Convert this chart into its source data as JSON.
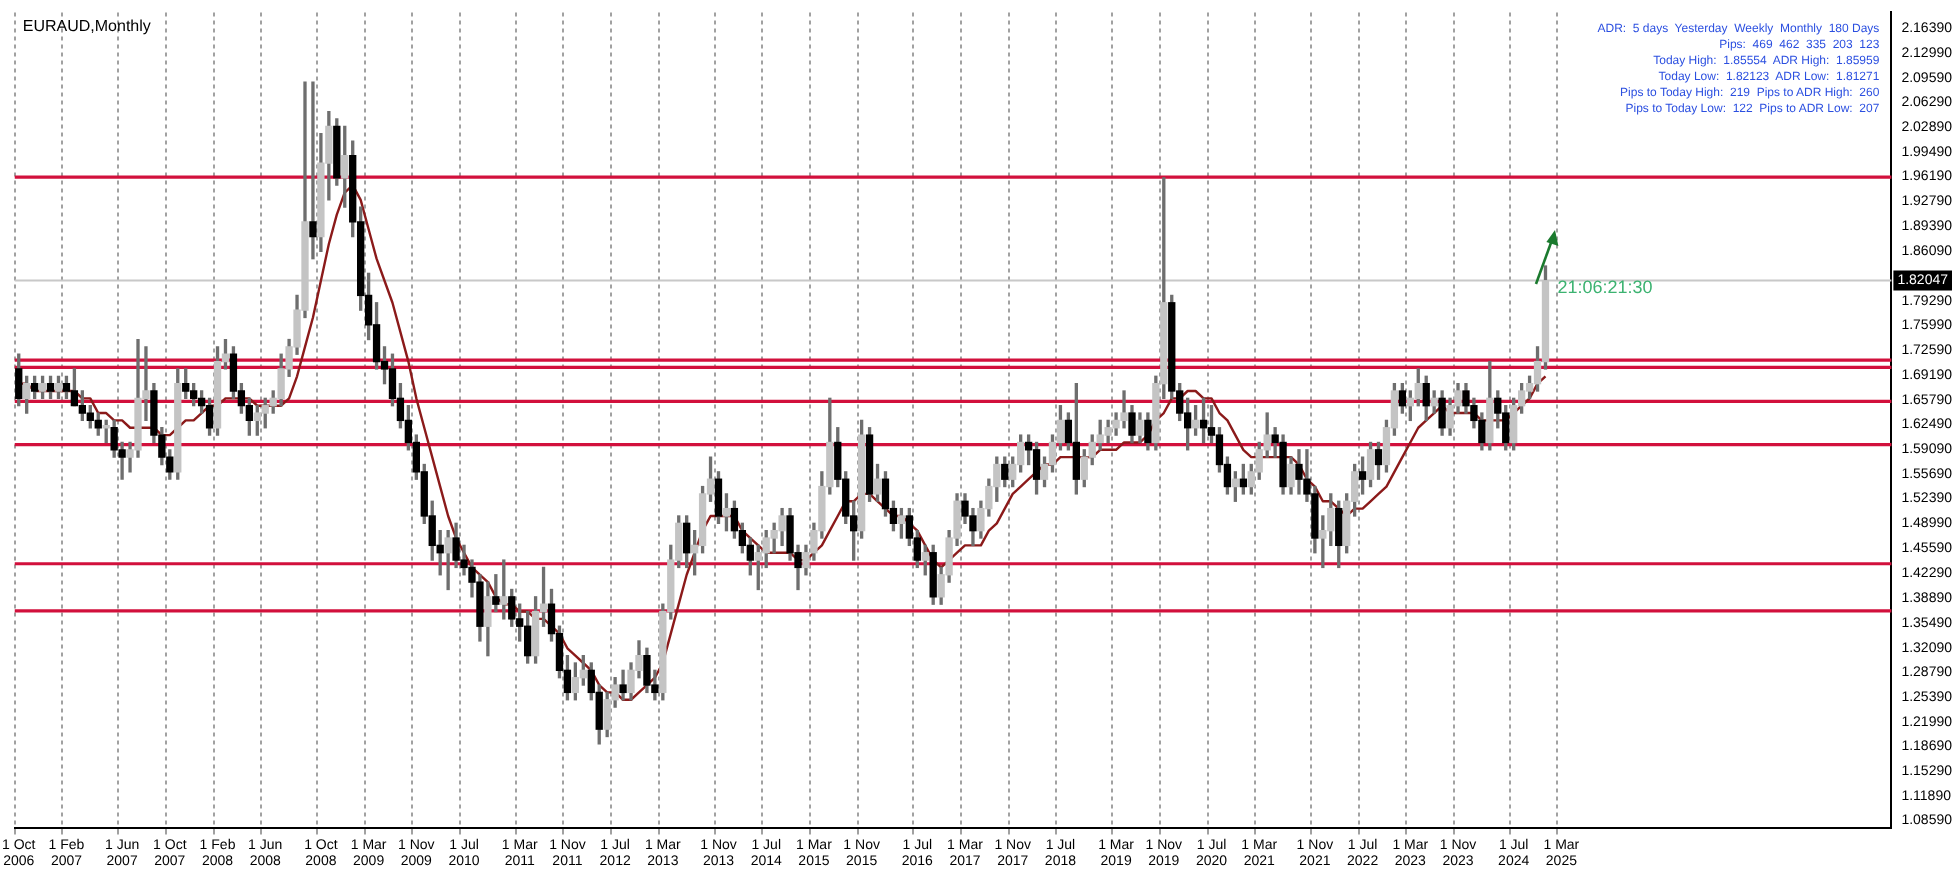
{
  "chart_data": {
    "type": "candlestick",
    "title": "EURAUD,Monthly",
    "categories": [
      "1 Oct 2006",
      null,
      null,
      null,
      null,
      null,
      "1 Feb 2007",
      null,
      null,
      null,
      null,
      null,
      null,
      "1 Jun 2007",
      null,
      null,
      null,
      null,
      null,
      "1 Oct 2007",
      null,
      null,
      null,
      null,
      null,
      "1 Feb 2008",
      null,
      null,
      null,
      null,
      null,
      "1 Jun 2008",
      null,
      null,
      null,
      null,
      null,
      null,
      "1 Oct 2008",
      null,
      null,
      null,
      null,
      null,
      "1 Mar 2009",
      null,
      null,
      null,
      null,
      null,
      "1 Nov 2009",
      null,
      null,
      null,
      null,
      null,
      "1 Jul 2010",
      null,
      null,
      null,
      null,
      null,
      null,
      "1 Mar 2011",
      null,
      null,
      null,
      null,
      null,
      "1 Nov 2011",
      null,
      null,
      null,
      null,
      null,
      "1 Jul 2012",
      null,
      null,
      null,
      null,
      null,
      "1 Mar 2013",
      null,
      null,
      null,
      null,
      null,
      null,
      "1 Nov 2013",
      null,
      null,
      null,
      null,
      null,
      "1 Jul 2014",
      null,
      null,
      null,
      null,
      null,
      "1 Mar 2015",
      null,
      null,
      null,
      null,
      null,
      "1 Nov 2015",
      null,
      null,
      null,
      null,
      null,
      null,
      "1 Jul 2016",
      null,
      null,
      null,
      null,
      null,
      "1 Mar 2017",
      null,
      null,
      null,
      null,
      null,
      "1 Nov 2017",
      null,
      null,
      null,
      null,
      null,
      "1 Jul 2018",
      null,
      null,
      null,
      null,
      null,
      null,
      "1 Mar 2019",
      null,
      null,
      null,
      null,
      null,
      "1 Nov 2019",
      null,
      null,
      null,
      null,
      null,
      "1 Jul 2020",
      null,
      null,
      null,
      null,
      null,
      "1 Mar 2021",
      null,
      null,
      null,
      null,
      null,
      null,
      "1 Nov 2021",
      null,
      null,
      null,
      null,
      null,
      "1 Jul 2022",
      null,
      null,
      null,
      null,
      null,
      "1 Mar 2023",
      null,
      null,
      null,
      null,
      null,
      "1 Nov 2023",
      null,
      null,
      null,
      null,
      null,
      null,
      "1 Jul 2024",
      null,
      null,
      null,
      null,
      null,
      "1 Mar 2025",
      null,
      null,
      null,
      null,
      null,
      null,
      null,
      null,
      null,
      null,
      null,
      null,
      null,
      null,
      null,
      null,
      null,
      null,
      null,
      null,
      null,
      null,
      null,
      null,
      null,
      null,
      null,
      null,
      null,
      null,
      null,
      null,
      null,
      null,
      null,
      null,
      null,
      null,
      null,
      null,
      null
    ],
    "ohlc": [
      [
        1.7,
        1.72,
        1.65,
        1.66
      ],
      [
        1.66,
        1.69,
        1.64,
        1.68
      ],
      [
        1.68,
        1.69,
        1.66,
        1.67
      ],
      [
        1.67,
        1.69,
        1.66,
        1.68
      ],
      [
        1.68,
        1.69,
        1.66,
        1.67
      ],
      [
        1.67,
        1.69,
        1.66,
        1.68
      ],
      [
        1.68,
        1.69,
        1.66,
        1.67
      ],
      [
        1.67,
        1.7,
        1.65,
        1.65
      ],
      [
        1.65,
        1.67,
        1.63,
        1.64
      ],
      [
        1.64,
        1.65,
        1.62,
        1.63
      ],
      [
        1.63,
        1.64,
        1.61,
        1.62
      ],
      [
        1.62,
        1.63,
        1.6,
        1.62
      ],
      [
        1.62,
        1.63,
        1.58,
        1.59
      ],
      [
        1.59,
        1.6,
        1.55,
        1.58
      ],
      [
        1.58,
        1.6,
        1.56,
        1.59
      ],
      [
        1.59,
        1.74,
        1.58,
        1.66
      ],
      [
        1.66,
        1.73,
        1.63,
        1.67
      ],
      [
        1.67,
        1.68,
        1.6,
        1.61
      ],
      [
        1.61,
        1.62,
        1.57,
        1.58
      ],
      [
        1.58,
        1.59,
        1.55,
        1.56
      ],
      [
        1.56,
        1.7,
        1.55,
        1.68
      ],
      [
        1.68,
        1.7,
        1.66,
        1.67
      ],
      [
        1.67,
        1.68,
        1.65,
        1.66
      ],
      [
        1.66,
        1.67,
        1.64,
        1.65
      ],
      [
        1.65,
        1.66,
        1.61,
        1.62
      ],
      [
        1.62,
        1.73,
        1.61,
        1.71
      ],
      [
        1.71,
        1.74,
        1.7,
        1.72
      ],
      [
        1.72,
        1.73,
        1.66,
        1.67
      ],
      [
        1.67,
        1.68,
        1.64,
        1.65
      ],
      [
        1.65,
        1.66,
        1.61,
        1.63
      ],
      [
        1.63,
        1.65,
        1.61,
        1.64
      ],
      [
        1.64,
        1.66,
        1.62,
        1.65
      ],
      [
        1.65,
        1.67,
        1.64,
        1.66
      ],
      [
        1.66,
        1.72,
        1.65,
        1.7
      ],
      [
        1.7,
        1.74,
        1.69,
        1.73
      ],
      [
        1.73,
        1.8,
        1.72,
        1.78
      ],
      [
        1.78,
        2.09,
        1.77,
        1.9
      ],
      [
        1.9,
        2.09,
        1.85,
        1.88
      ],
      [
        1.88,
        2.02,
        1.86,
        1.98
      ],
      [
        1.98,
        2.05,
        1.93,
        2.03
      ],
      [
        2.03,
        2.04,
        1.95,
        1.96
      ],
      [
        1.96,
        2.03,
        1.92,
        1.99
      ],
      [
        1.99,
        2.01,
        1.88,
        1.9
      ],
      [
        1.9,
        1.92,
        1.78,
        1.8
      ],
      [
        1.8,
        1.83,
        1.74,
        1.76
      ],
      [
        1.76,
        1.79,
        1.7,
        1.71
      ],
      [
        1.71,
        1.73,
        1.68,
        1.7
      ],
      [
        1.7,
        1.72,
        1.65,
        1.66
      ],
      [
        1.66,
        1.68,
        1.62,
        1.63
      ],
      [
        1.63,
        1.65,
        1.59,
        1.6
      ],
      [
        1.6,
        1.61,
        1.55,
        1.56
      ],
      [
        1.56,
        1.57,
        1.49,
        1.5
      ],
      [
        1.5,
        1.52,
        1.44,
        1.46
      ],
      [
        1.46,
        1.48,
        1.42,
        1.45
      ],
      [
        1.45,
        1.48,
        1.4,
        1.47
      ],
      [
        1.47,
        1.49,
        1.43,
        1.44
      ],
      [
        1.44,
        1.46,
        1.42,
        1.43
      ],
      [
        1.43,
        1.44,
        1.39,
        1.41
      ],
      [
        1.41,
        1.42,
        1.33,
        1.35
      ],
      [
        1.35,
        1.41,
        1.31,
        1.39
      ],
      [
        1.39,
        1.42,
        1.37,
        1.38
      ],
      [
        1.38,
        1.44,
        1.36,
        1.39
      ],
      [
        1.39,
        1.4,
        1.35,
        1.36
      ],
      [
        1.36,
        1.38,
        1.33,
        1.35
      ],
      [
        1.35,
        1.37,
        1.3,
        1.31
      ],
      [
        1.31,
        1.39,
        1.3,
        1.37
      ],
      [
        1.37,
        1.43,
        1.35,
        1.38
      ],
      [
        1.38,
        1.4,
        1.33,
        1.34
      ],
      [
        1.34,
        1.35,
        1.28,
        1.29
      ],
      [
        1.29,
        1.31,
        1.25,
        1.26
      ],
      [
        1.26,
        1.3,
        1.25,
        1.28
      ],
      [
        1.28,
        1.31,
        1.27,
        1.29
      ],
      [
        1.29,
        1.3,
        1.25,
        1.26
      ],
      [
        1.26,
        1.27,
        1.19,
        1.21
      ],
      [
        1.21,
        1.26,
        1.2,
        1.25
      ],
      [
        1.25,
        1.28,
        1.24,
        1.27
      ],
      [
        1.27,
        1.29,
        1.25,
        1.26
      ],
      [
        1.26,
        1.3,
        1.25,
        1.29
      ],
      [
        1.29,
        1.33,
        1.28,
        1.31
      ],
      [
        1.31,
        1.32,
        1.26,
        1.27
      ],
      [
        1.27,
        1.29,
        1.25,
        1.26
      ],
      [
        1.26,
        1.38,
        1.25,
        1.37
      ],
      [
        1.37,
        1.46,
        1.36,
        1.44
      ],
      [
        1.44,
        1.5,
        1.43,
        1.49
      ],
      [
        1.49,
        1.5,
        1.43,
        1.45
      ],
      [
        1.45,
        1.48,
        1.42,
        1.46
      ],
      [
        1.46,
        1.54,
        1.45,
        1.53
      ],
      [
        1.53,
        1.58,
        1.52,
        1.55
      ],
      [
        1.55,
        1.56,
        1.49,
        1.5
      ],
      [
        1.5,
        1.53,
        1.48,
        1.51
      ],
      [
        1.51,
        1.52,
        1.47,
        1.48
      ],
      [
        1.48,
        1.49,
        1.45,
        1.46
      ],
      [
        1.46,
        1.47,
        1.42,
        1.44
      ],
      [
        1.44,
        1.46,
        1.4,
        1.45
      ],
      [
        1.45,
        1.48,
        1.43,
        1.47
      ],
      [
        1.47,
        1.49,
        1.45,
        1.48
      ],
      [
        1.48,
        1.51,
        1.46,
        1.5
      ],
      [
        1.5,
        1.51,
        1.44,
        1.45
      ],
      [
        1.45,
        1.46,
        1.4,
        1.43
      ],
      [
        1.43,
        1.46,
        1.42,
        1.45
      ],
      [
        1.45,
        1.49,
        1.44,
        1.48
      ],
      [
        1.48,
        1.56,
        1.47,
        1.54
      ],
      [
        1.54,
        1.66,
        1.53,
        1.6
      ],
      [
        1.6,
        1.62,
        1.54,
        1.55
      ],
      [
        1.55,
        1.56,
        1.49,
        1.5
      ],
      [
        1.5,
        1.52,
        1.44,
        1.48
      ],
      [
        1.48,
        1.63,
        1.47,
        1.61
      ],
      [
        1.61,
        1.62,
        1.52,
        1.53
      ],
      [
        1.53,
        1.57,
        1.52,
        1.55
      ],
      [
        1.55,
        1.56,
        1.5,
        1.51
      ],
      [
        1.51,
        1.52,
        1.48,
        1.49
      ],
      [
        1.49,
        1.51,
        1.47,
        1.5
      ],
      [
        1.5,
        1.51,
        1.46,
        1.47
      ],
      [
        1.47,
        1.48,
        1.43,
        1.44
      ],
      [
        1.44,
        1.46,
        1.42,
        1.45
      ],
      [
        1.45,
        1.46,
        1.38,
        1.39
      ],
      [
        1.39,
        1.43,
        1.38,
        1.42
      ],
      [
        1.42,
        1.48,
        1.41,
        1.47
      ],
      [
        1.47,
        1.53,
        1.46,
        1.52
      ],
      [
        1.52,
        1.53,
        1.49,
        1.5
      ],
      [
        1.5,
        1.51,
        1.46,
        1.48
      ],
      [
        1.48,
        1.52,
        1.47,
        1.51
      ],
      [
        1.51,
        1.55,
        1.5,
        1.54
      ],
      [
        1.54,
        1.58,
        1.52,
        1.57
      ],
      [
        1.57,
        1.58,
        1.54,
        1.55
      ],
      [
        1.55,
        1.58,
        1.54,
        1.57
      ],
      [
        1.57,
        1.61,
        1.56,
        1.6
      ],
      [
        1.6,
        1.61,
        1.57,
        1.59
      ],
      [
        1.59,
        1.6,
        1.53,
        1.55
      ],
      [
        1.55,
        1.58,
        1.54,
        1.57
      ],
      [
        1.57,
        1.61,
        1.56,
        1.6
      ],
      [
        1.6,
        1.65,
        1.59,
        1.63
      ],
      [
        1.63,
        1.64,
        1.59,
        1.6
      ],
      [
        1.6,
        1.68,
        1.53,
        1.55
      ],
      [
        1.55,
        1.59,
        1.54,
        1.58
      ],
      [
        1.58,
        1.61,
        1.57,
        1.6
      ],
      [
        1.6,
        1.63,
        1.59,
        1.61
      ],
      [
        1.61,
        1.63,
        1.6,
        1.62
      ],
      [
        1.62,
        1.64,
        1.61,
        1.63
      ],
      [
        1.63,
        1.67,
        1.62,
        1.64
      ],
      [
        1.64,
        1.65,
        1.6,
        1.61
      ],
      [
        1.61,
        1.64,
        1.6,
        1.63
      ],
      [
        1.63,
        1.64,
        1.59,
        1.6
      ],
      [
        1.6,
        1.69,
        1.59,
        1.68
      ],
      [
        1.68,
        1.96,
        1.66,
        1.79
      ],
      [
        1.79,
        1.8,
        1.66,
        1.67
      ],
      [
        1.67,
        1.68,
        1.63,
        1.64
      ],
      [
        1.64,
        1.66,
        1.59,
        1.62
      ],
      [
        1.62,
        1.65,
        1.61,
        1.63
      ],
      [
        1.63,
        1.66,
        1.6,
        1.62
      ],
      [
        1.62,
        1.65,
        1.6,
        1.61
      ],
      [
        1.61,
        1.62,
        1.56,
        1.57
      ],
      [
        1.57,
        1.58,
        1.53,
        1.54
      ],
      [
        1.54,
        1.56,
        1.52,
        1.55
      ],
      [
        1.55,
        1.57,
        1.53,
        1.54
      ],
      [
        1.54,
        1.57,
        1.53,
        1.56
      ],
      [
        1.56,
        1.6,
        1.55,
        1.59
      ],
      [
        1.59,
        1.64,
        1.58,
        1.61
      ],
      [
        1.61,
        1.62,
        1.58,
        1.6
      ],
      [
        1.6,
        1.61,
        1.53,
        1.54
      ],
      [
        1.54,
        1.58,
        1.53,
        1.57
      ],
      [
        1.57,
        1.59,
        1.53,
        1.55
      ],
      [
        1.55,
        1.59,
        1.52,
        1.53
      ],
      [
        1.53,
        1.54,
        1.45,
        1.47
      ],
      [
        1.47,
        1.5,
        1.43,
        1.48
      ],
      [
        1.48,
        1.53,
        1.46,
        1.51
      ],
      [
        1.51,
        1.52,
        1.43,
        1.46
      ],
      [
        1.46,
        1.53,
        1.45,
        1.52
      ],
      [
        1.52,
        1.57,
        1.5,
        1.56
      ],
      [
        1.56,
        1.58,
        1.53,
        1.55
      ],
      [
        1.55,
        1.6,
        1.54,
        1.59
      ],
      [
        1.59,
        1.6,
        1.55,
        1.57
      ],
      [
        1.57,
        1.63,
        1.56,
        1.62
      ],
      [
        1.62,
        1.68,
        1.61,
        1.67
      ],
      [
        1.67,
        1.68,
        1.64,
        1.65
      ],
      [
        1.65,
        1.67,
        1.63,
        1.66
      ],
      [
        1.66,
        1.7,
        1.65,
        1.68
      ],
      [
        1.68,
        1.69,
        1.63,
        1.65
      ],
      [
        1.65,
        1.67,
        1.64,
        1.66
      ],
      [
        1.66,
        1.67,
        1.61,
        1.62
      ],
      [
        1.62,
        1.66,
        1.61,
        1.65
      ],
      [
        1.65,
        1.68,
        1.64,
        1.67
      ],
      [
        1.67,
        1.68,
        1.64,
        1.65
      ],
      [
        1.65,
        1.66,
        1.62,
        1.63
      ],
      [
        1.63,
        1.64,
        1.59,
        1.6
      ],
      [
        1.6,
        1.71,
        1.59,
        1.66
      ],
      [
        1.66,
        1.67,
        1.62,
        1.64
      ],
      [
        1.64,
        1.65,
        1.59,
        1.6
      ],
      [
        1.6,
        1.66,
        1.59,
        1.65
      ],
      [
        1.65,
        1.68,
        1.64,
        1.67
      ],
      [
        1.67,
        1.69,
        1.66,
        1.68
      ],
      [
        1.68,
        1.73,
        1.67,
        1.71
      ],
      [
        1.71,
        1.84,
        1.7,
        1.82
      ],
      null,
      null,
      null,
      null,
      null,
      null,
      null,
      null,
      null,
      null,
      null,
      null,
      null,
      null,
      null,
      null,
      null,
      null,
      null,
      null,
      null,
      null,
      null,
      null,
      null,
      null,
      null,
      null,
      null,
      null,
      null,
      null,
      null,
      null,
      null,
      null,
      null,
      null,
      null,
      null,
      null,
      null,
      null
    ],
    "series": [
      {
        "type": "line",
        "color": "#8b1a1a",
        "values": [
          1.68,
          1.68,
          1.67,
          1.67,
          1.67,
          1.67,
          1.67,
          1.67,
          1.66,
          1.66,
          1.64,
          1.64,
          1.63,
          1.63,
          1.62,
          1.62,
          1.62,
          1.62,
          1.61,
          1.61,
          1.62,
          1.63,
          1.63,
          1.64,
          1.65,
          1.65,
          1.66,
          1.66,
          1.66,
          1.66,
          1.65,
          1.65,
          1.65,
          1.65,
          1.66,
          1.69,
          1.73,
          1.77,
          1.82,
          1.87,
          1.91,
          1.94,
          1.95,
          1.93,
          1.89,
          1.85,
          1.82,
          1.79,
          1.75,
          1.71,
          1.66,
          1.62,
          1.58,
          1.54,
          1.5,
          1.47,
          1.45,
          1.43,
          1.42,
          1.41,
          1.39,
          1.38,
          1.38,
          1.37,
          1.37,
          1.36,
          1.36,
          1.35,
          1.34,
          1.32,
          1.31,
          1.3,
          1.29,
          1.27,
          1.26,
          1.26,
          1.25,
          1.25,
          1.26,
          1.27,
          1.28,
          1.3,
          1.34,
          1.38,
          1.42,
          1.45,
          1.48,
          1.5,
          1.5,
          1.5,
          1.5,
          1.48,
          1.47,
          1.46,
          1.45,
          1.45,
          1.45,
          1.45,
          1.44,
          1.44,
          1.45,
          1.46,
          1.48,
          1.5,
          1.52,
          1.52,
          1.53,
          1.53,
          1.52,
          1.51,
          1.5,
          1.5,
          1.49,
          1.48,
          1.46,
          1.44,
          1.43,
          1.44,
          1.45,
          1.46,
          1.46,
          1.46,
          1.48,
          1.49,
          1.51,
          1.53,
          1.54,
          1.55,
          1.56,
          1.57,
          1.57,
          1.58,
          1.58,
          1.58,
          1.58,
          1.58,
          1.59,
          1.59,
          1.59,
          1.6,
          1.6,
          1.6,
          1.61,
          1.63,
          1.64,
          1.66,
          1.66,
          1.67,
          1.67,
          1.66,
          1.66,
          1.64,
          1.63,
          1.61,
          1.59,
          1.58,
          1.58,
          1.58,
          1.58,
          1.58,
          1.58,
          1.57,
          1.55,
          1.54,
          1.52,
          1.52,
          1.51,
          1.5,
          1.51,
          1.51,
          1.52,
          1.53,
          1.54,
          1.56,
          1.58,
          1.6,
          1.62,
          1.63,
          1.64,
          1.65,
          1.64,
          1.64,
          1.64,
          1.64,
          1.63,
          1.63,
          1.63,
          1.63,
          1.64,
          1.65,
          1.66,
          1.68,
          1.69,
          null,
          null,
          null,
          null,
          null,
          null,
          null,
          null,
          null,
          null,
          null,
          null,
          null,
          null,
          null,
          null,
          null,
          null,
          null,
          null,
          null,
          null,
          null,
          null,
          null,
          null,
          null,
          null,
          null,
          null,
          null,
          null,
          null,
          null,
          null,
          null,
          null,
          null,
          null,
          null,
          null,
          null,
          null
        ]
      }
    ],
    "ylim": [
      1.075,
      2.185
    ],
    "yticks": [
      {
        "value": 1.0859,
        "label": "1.08590"
      },
      {
        "value": 1.1189,
        "label": "1.11890"
      },
      {
        "value": 1.1529,
        "label": "1.15290"
      },
      {
        "value": 1.1869,
        "label": "1.18690"
      },
      {
        "value": 1.2199,
        "label": "1.21990"
      },
      {
        "value": 1.2539,
        "label": "1.25390"
      },
      {
        "value": 1.2879,
        "label": "1.28790"
      },
      {
        "value": 1.3209,
        "label": "1.32090"
      },
      {
        "value": 1.3549,
        "label": "1.35490"
      },
      {
        "value": 1.3889,
        "label": "1.38890"
      },
      {
        "value": 1.4229,
        "label": "1.42290"
      },
      {
        "value": 1.4559,
        "label": "1.45590"
      },
      {
        "value": 1.4899,
        "label": "1.48990"
      },
      {
        "value": 1.5239,
        "label": "1.52390"
      },
      {
        "value": 1.5569,
        "label": "1.55690"
      },
      {
        "value": 1.5909,
        "label": "1.59090"
      },
      {
        "value": 1.6249,
        "label": "1.62490"
      },
      {
        "value": 1.6579,
        "label": "1.65790"
      },
      {
        "value": 1.6919,
        "label": "1.69190"
      },
      {
        "value": 1.7259,
        "label": "1.72590"
      },
      {
        "value": 1.7599,
        "label": "1.75990"
      },
      {
        "value": 1.7929,
        "label": "1.79290"
      },
      {
        "value": 1.8609,
        "label": "1.86090"
      },
      {
        "value": 1.8939,
        "label": "1.89390"
      },
      {
        "value": 1.9279,
        "label": "1.92790"
      },
      {
        "value": 1.9619,
        "label": "1.96190"
      },
      {
        "value": 1.9949,
        "label": "1.99490"
      },
      {
        "value": 2.0289,
        "label": "2.02890"
      },
      {
        "value": 2.0629,
        "label": "2.06290"
      },
      {
        "value": 2.0959,
        "label": "2.09590"
      },
      {
        "value": 2.1299,
        "label": "2.12990"
      },
      {
        "value": 2.1639,
        "label": "2.16390"
      }
    ],
    "grid": "x",
    "legend": false,
    "ref_lines": [
      {
        "axis": "y",
        "value": 1.961,
        "color": "#d2103c"
      },
      {
        "axis": "y",
        "value": 1.712,
        "color": "#d2103c"
      },
      {
        "axis": "y",
        "value": 1.702,
        "color": "#d2103c"
      },
      {
        "axis": "y",
        "value": 1.656,
        "color": "#d2103c"
      },
      {
        "axis": "y",
        "value": 1.597,
        "color": "#d2103c"
      },
      {
        "axis": "y",
        "value": 1.435,
        "color": "#d2103c"
      },
      {
        "axis": "y",
        "value": 1.371,
        "color": "#d2103c"
      },
      {
        "axis": "y",
        "value": 1.82047,
        "label": "1.82047",
        "color": "#c8c8c8"
      }
    ],
    "annotations": [
      "ADR:  5 days  Yesterday  Weekly  Monthly  180 Days",
      "Pips:  469  462  335  203  123",
      "Today High:  1.85554  ADR High:  1.85959",
      "Today Low:  1.82123  ADR Low:  1.81271",
      "Pips to Today High:  219  Pips to ADR High:  260",
      "Pips to Today Low:  122  Pips to ADR Low:  207",
      {
        "text": "21:06:21:30",
        "y": 1.81
      }
    ]
  }
}
